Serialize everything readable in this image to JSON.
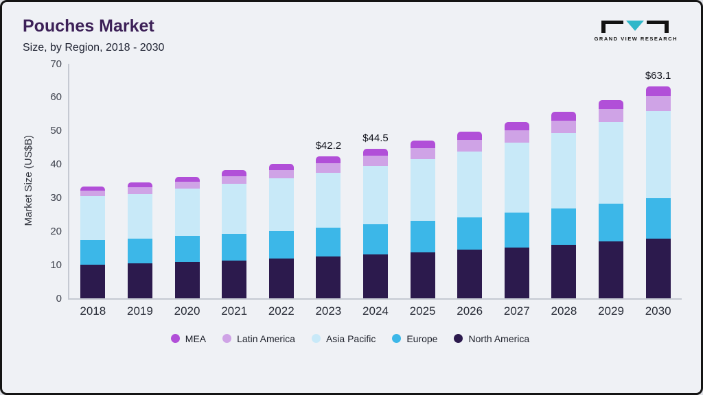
{
  "header": {
    "title": "Pouches Market",
    "subtitle": "Size, by Region, 2018 - 2030",
    "brand": "GRAND VIEW RESEARCH"
  },
  "chart_data": {
    "type": "bar",
    "stacked": true,
    "title": "Pouches Market",
    "subtitle": "Size, by Region, 2018 - 2030",
    "xlabel": "",
    "ylabel": "Market Size (US$B)",
    "ylim": [
      0,
      70
    ],
    "ytick_step": 10,
    "grid": false,
    "legend_position": "bottom",
    "categories": [
      "2018",
      "2019",
      "2020",
      "2021",
      "2022",
      "2023",
      "2024",
      "2025",
      "2026",
      "2027",
      "2028",
      "2029",
      "2030"
    ],
    "series": [
      {
        "name": "North America",
        "color": "#2c1a4d",
        "values": [
          10.0,
          10.4,
          10.7,
          11.2,
          11.7,
          12.3,
          12.9,
          13.6,
          14.4,
          15.0,
          15.8,
          16.8,
          17.8
        ]
      },
      {
        "name": "Europe",
        "color": "#3cb7e8",
        "values": [
          7.2,
          7.4,
          7.9,
          8.0,
          8.3,
          8.7,
          9.2,
          9.5,
          9.7,
          10.4,
          10.9,
          11.4,
          12.0
        ]
      },
      {
        "name": "Asia Pacific",
        "color": "#c8e9f8",
        "values": [
          13.3,
          13.3,
          14.0,
          14.8,
          15.7,
          16.4,
          17.3,
          18.4,
          19.7,
          21.0,
          22.6,
          24.3,
          26.0
        ]
      },
      {
        "name": "Latin America",
        "color": "#cfa3e6",
        "values": [
          1.5,
          2.0,
          2.0,
          2.3,
          2.5,
          2.8,
          3.0,
          3.2,
          3.4,
          3.6,
          3.7,
          3.9,
          4.4
        ]
      },
      {
        "name": "MEA",
        "color": "#b14fd8",
        "values": [
          1.2,
          1.4,
          1.6,
          1.8,
          1.8,
          2.0,
          2.1,
          2.2,
          2.4,
          2.5,
          2.6,
          2.7,
          2.9
        ]
      }
    ],
    "totals": [
      33.2,
      34.5,
      36.2,
      38.1,
      40.0,
      42.2,
      44.5,
      46.9,
      49.6,
      52.5,
      55.6,
      59.1,
      63.1
    ],
    "annotations": [
      {
        "category": "2023",
        "text": "$42.2"
      },
      {
        "category": "2024",
        "text": "$44.5"
      },
      {
        "category": "2030",
        "text": "$63.1"
      }
    ]
  }
}
